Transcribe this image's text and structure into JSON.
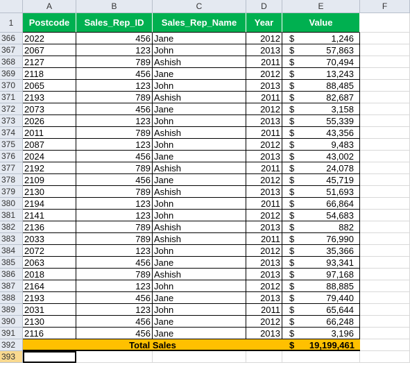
{
  "column_letters": [
    "A",
    "B",
    "C",
    "D",
    "E",
    "F"
  ],
  "header": {
    "row_number": 1,
    "cells": [
      "Postcode",
      "Sales_Rep_ID",
      "Sales_Rep_Name",
      "Year",
      "Value"
    ]
  },
  "currency_symbol": "$",
  "rows": [
    {
      "row_number": 366,
      "cells": [
        "2022",
        456,
        "Jane",
        2012,
        "1,246"
      ]
    },
    {
      "row_number": 367,
      "cells": [
        "2067",
        123,
        "John",
        2013,
        "57,863"
      ]
    },
    {
      "row_number": 368,
      "cells": [
        "2127",
        789,
        "Ashish",
        2011,
        "70,494"
      ]
    },
    {
      "row_number": 369,
      "cells": [
        "2118",
        456,
        "Jane",
        2012,
        "13,243"
      ]
    },
    {
      "row_number": 370,
      "cells": [
        "2065",
        123,
        "John",
        2013,
        "88,485"
      ]
    },
    {
      "row_number": 371,
      "cells": [
        "2193",
        789,
        "Ashish",
        2011,
        "82,687"
      ]
    },
    {
      "row_number": 372,
      "cells": [
        "2073",
        456,
        "Jane",
        2012,
        "3,158"
      ]
    },
    {
      "row_number": 373,
      "cells": [
        "2026",
        123,
        "John",
        2013,
        "55,339"
      ]
    },
    {
      "row_number": 374,
      "cells": [
        "2011",
        789,
        "Ashish",
        2011,
        "43,356"
      ]
    },
    {
      "row_number": 375,
      "cells": [
        "2087",
        123,
        "John",
        2012,
        "9,483"
      ]
    },
    {
      "row_number": 376,
      "cells": [
        "2024",
        456,
        "Jane",
        2013,
        "43,002"
      ]
    },
    {
      "row_number": 377,
      "cells": [
        "2192",
        789,
        "Ashish",
        2011,
        "24,078"
      ]
    },
    {
      "row_number": 378,
      "cells": [
        "2109",
        456,
        "Jane",
        2012,
        "45,719"
      ]
    },
    {
      "row_number": 379,
      "cells": [
        "2130",
        789,
        "Ashish",
        2013,
        "51,693"
      ]
    },
    {
      "row_number": 380,
      "cells": [
        "2194",
        123,
        "John",
        2011,
        "66,864"
      ]
    },
    {
      "row_number": 381,
      "cells": [
        "2141",
        123,
        "John",
        2012,
        "54,683"
      ]
    },
    {
      "row_number": 382,
      "cells": [
        "2136",
        789,
        "Ashish",
        2013,
        "882"
      ]
    },
    {
      "row_number": 383,
      "cells": [
        "2033",
        789,
        "Ashish",
        2011,
        "76,990"
      ]
    },
    {
      "row_number": 384,
      "cells": [
        "2072",
        123,
        "John",
        2012,
        "35,366"
      ]
    },
    {
      "row_number": 385,
      "cells": [
        "2063",
        456,
        "Jane",
        2013,
        "93,341"
      ]
    },
    {
      "row_number": 386,
      "cells": [
        "2018",
        789,
        "Ashish",
        2013,
        "97,168"
      ]
    },
    {
      "row_number": 387,
      "cells": [
        "2164",
        123,
        "John",
        2012,
        "88,885"
      ]
    },
    {
      "row_number": 388,
      "cells": [
        "2193",
        456,
        "Jane",
        2013,
        "79,440"
      ]
    },
    {
      "row_number": 389,
      "cells": [
        "2031",
        123,
        "John",
        2011,
        "65,644"
      ]
    },
    {
      "row_number": 390,
      "cells": [
        "2130",
        456,
        "Jane",
        2012,
        "66,248"
      ]
    },
    {
      "row_number": 391,
      "cells": [
        "2116",
        456,
        "Jane",
        2013,
        "3,196"
      ]
    }
  ],
  "total": {
    "row_number": 392,
    "label": "Total Sales",
    "value": "19,199,461"
  },
  "empty_row_number": 393
}
